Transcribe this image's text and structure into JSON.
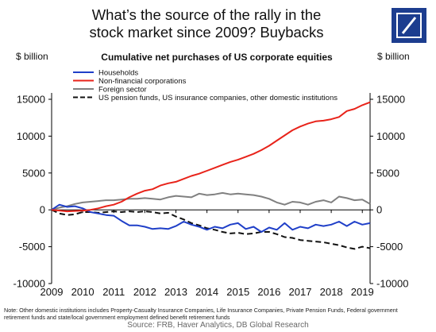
{
  "header": {
    "title_line1": "What’s the source of the rally in the",
    "title_line2": "stock market since 2009? Buybacks",
    "logo_name": "deutsche-bank-logo",
    "logo_color": "#1c3d8f"
  },
  "chart_data": {
    "type": "line",
    "title": "Cumulative net purchases of US corporate equities",
    "ylabel_left": "$ billion",
    "ylabel_right": "$ billion",
    "ylim": [
      -10000,
      15000
    ],
    "yticks": [
      15000,
      10000,
      5000,
      0,
      -5000,
      -10000
    ],
    "ytick_labels": [
      "15000",
      "10000",
      "5000",
      "0",
      "-5000",
      "-10000"
    ],
    "xlim": [
      2009,
      2019.25
    ],
    "xticks": [
      2009,
      2010,
      2011,
      2012,
      2013,
      2014,
      2015,
      2016,
      2017,
      2018,
      2019
    ],
    "xtick_labels": [
      "2009",
      "2010",
      "2011",
      "2012",
      "2013",
      "2014",
      "2015",
      "2016",
      "2017",
      "2018",
      "2019"
    ],
    "legend_position": "top-left",
    "grid": false,
    "series": [
      {
        "name": "Households",
        "color": "#1f3fc8",
        "dash": "solid",
        "points": [
          [
            2009.0,
            0
          ],
          [
            2009.25,
            700
          ],
          [
            2009.5,
            400
          ],
          [
            2009.75,
            500
          ],
          [
            2010.0,
            200
          ],
          [
            2010.25,
            -300
          ],
          [
            2010.5,
            -500
          ],
          [
            2010.75,
            -700
          ],
          [
            2011.0,
            -800
          ],
          [
            2011.25,
            -1500
          ],
          [
            2011.5,
            -2100
          ],
          [
            2011.75,
            -2100
          ],
          [
            2012.0,
            -2300
          ],
          [
            2012.25,
            -2600
          ],
          [
            2012.5,
            -2500
          ],
          [
            2012.75,
            -2600
          ],
          [
            2013.0,
            -2200
          ],
          [
            2013.25,
            -1600
          ],
          [
            2013.5,
            -2000
          ],
          [
            2013.75,
            -2300
          ],
          [
            2014.0,
            -2700
          ],
          [
            2014.25,
            -2300
          ],
          [
            2014.5,
            -2500
          ],
          [
            2014.75,
            -2000
          ],
          [
            2015.0,
            -1800
          ],
          [
            2015.25,
            -2600
          ],
          [
            2015.5,
            -2300
          ],
          [
            2015.75,
            -3000
          ],
          [
            2016.0,
            -2400
          ],
          [
            2016.25,
            -2700
          ],
          [
            2016.5,
            -1800
          ],
          [
            2016.75,
            -2700
          ],
          [
            2017.0,
            -2300
          ],
          [
            2017.25,
            -2500
          ],
          [
            2017.5,
            -2000
          ],
          [
            2017.75,
            -2200
          ],
          [
            2018.0,
            -2000
          ],
          [
            2018.25,
            -1600
          ],
          [
            2018.5,
            -2200
          ],
          [
            2018.75,
            -1600
          ],
          [
            2019.0,
            -2000
          ],
          [
            2019.25,
            -1800
          ]
        ]
      },
      {
        "name": "Non-financial corporations",
        "color": "#e8231a",
        "dash": "solid",
        "points": [
          [
            2009.0,
            0
          ],
          [
            2009.25,
            -100
          ],
          [
            2009.5,
            -200
          ],
          [
            2009.75,
            -150
          ],
          [
            2010.0,
            -100
          ],
          [
            2010.25,
            0
          ],
          [
            2010.5,
            200
          ],
          [
            2010.75,
            500
          ],
          [
            2011.0,
            700
          ],
          [
            2011.25,
            1100
          ],
          [
            2011.5,
            1700
          ],
          [
            2011.75,
            2200
          ],
          [
            2012.0,
            2600
          ],
          [
            2012.25,
            2800
          ],
          [
            2012.5,
            3300
          ],
          [
            2012.75,
            3600
          ],
          [
            2013.0,
            3800
          ],
          [
            2013.25,
            4200
          ],
          [
            2013.5,
            4600
          ],
          [
            2013.75,
            4900
          ],
          [
            2014.0,
            5300
          ],
          [
            2014.25,
            5700
          ],
          [
            2014.5,
            6100
          ],
          [
            2014.75,
            6500
          ],
          [
            2015.0,
            6800
          ],
          [
            2015.25,
            7200
          ],
          [
            2015.5,
            7600
          ],
          [
            2015.75,
            8100
          ],
          [
            2016.0,
            8700
          ],
          [
            2016.25,
            9400
          ],
          [
            2016.5,
            10100
          ],
          [
            2016.75,
            10800
          ],
          [
            2017.0,
            11300
          ],
          [
            2017.25,
            11700
          ],
          [
            2017.5,
            12000
          ],
          [
            2017.75,
            12100
          ],
          [
            2018.0,
            12300
          ],
          [
            2018.25,
            12600
          ],
          [
            2018.5,
            13400
          ],
          [
            2018.75,
            13700
          ],
          [
            2019.0,
            14200
          ],
          [
            2019.25,
            14600
          ]
        ]
      },
      {
        "name": "Foreign sector",
        "color": "#808080",
        "dash": "solid",
        "points": [
          [
            2009.0,
            0
          ],
          [
            2009.25,
            300
          ],
          [
            2009.5,
            500
          ],
          [
            2009.75,
            800
          ],
          [
            2010.0,
            1000
          ],
          [
            2010.25,
            1100
          ],
          [
            2010.5,
            1200
          ],
          [
            2010.75,
            1300
          ],
          [
            2011.0,
            1300
          ],
          [
            2011.25,
            1400
          ],
          [
            2011.5,
            1500
          ],
          [
            2011.75,
            1500
          ],
          [
            2012.0,
            1600
          ],
          [
            2012.25,
            1500
          ],
          [
            2012.5,
            1400
          ],
          [
            2012.75,
            1700
          ],
          [
            2013.0,
            1900
          ],
          [
            2013.25,
            1800
          ],
          [
            2013.5,
            1700
          ],
          [
            2013.75,
            2200
          ],
          [
            2014.0,
            2000
          ],
          [
            2014.25,
            2100
          ],
          [
            2014.5,
            2300
          ],
          [
            2014.75,
            2100
          ],
          [
            2015.0,
            2200
          ],
          [
            2015.25,
            2100
          ],
          [
            2015.5,
            2000
          ],
          [
            2015.75,
            1800
          ],
          [
            2016.0,
            1500
          ],
          [
            2016.25,
            1000
          ],
          [
            2016.5,
            700
          ],
          [
            2016.75,
            1100
          ],
          [
            2017.0,
            1000
          ],
          [
            2017.25,
            700
          ],
          [
            2017.5,
            1100
          ],
          [
            2017.75,
            1300
          ],
          [
            2018.0,
            1000
          ],
          [
            2018.25,
            1800
          ],
          [
            2018.5,
            1600
          ],
          [
            2018.75,
            1300
          ],
          [
            2019.0,
            1400
          ],
          [
            2019.25,
            800
          ]
        ]
      },
      {
        "name": "US pension funds, US insurance companies, other domestic institutions",
        "color": "#111111",
        "dash": "dashed",
        "points": [
          [
            2009.0,
            0
          ],
          [
            2009.25,
            -500
          ],
          [
            2009.5,
            -700
          ],
          [
            2009.75,
            -600
          ],
          [
            2010.0,
            -300
          ],
          [
            2010.25,
            -300
          ],
          [
            2010.5,
            -400
          ],
          [
            2010.75,
            -300
          ],
          [
            2011.0,
            -200
          ],
          [
            2011.25,
            -300
          ],
          [
            2011.5,
            -200
          ],
          [
            2011.75,
            -300
          ],
          [
            2012.0,
            -200
          ],
          [
            2012.25,
            -300
          ],
          [
            2012.5,
            -500
          ],
          [
            2012.75,
            -400
          ],
          [
            2013.0,
            -900
          ],
          [
            2013.25,
            -1300
          ],
          [
            2013.5,
            -1800
          ],
          [
            2013.75,
            -2100
          ],
          [
            2014.0,
            -2500
          ],
          [
            2014.25,
            -2700
          ],
          [
            2014.5,
            -3000
          ],
          [
            2014.75,
            -3200
          ],
          [
            2015.0,
            -3100
          ],
          [
            2015.25,
            -3300
          ],
          [
            2015.5,
            -3200
          ],
          [
            2015.75,
            -3000
          ],
          [
            2016.0,
            -3000
          ],
          [
            2016.25,
            -3300
          ],
          [
            2016.5,
            -3700
          ],
          [
            2016.75,
            -3800
          ],
          [
            2017.0,
            -4100
          ],
          [
            2017.25,
            -4200
          ],
          [
            2017.5,
            -4300
          ],
          [
            2017.75,
            -4400
          ],
          [
            2018.0,
            -4600
          ],
          [
            2018.25,
            -4800
          ],
          [
            2018.5,
            -5100
          ],
          [
            2018.75,
            -5300
          ],
          [
            2019.0,
            -5000
          ],
          [
            2019.25,
            -5200
          ]
        ]
      }
    ]
  },
  "footer": {
    "note_line1": "Note: Other domestic institutions includes Property-Casualty Insurance Companies, Life Insurance Companies, Private Pension Funds, Federal government",
    "note_line2": "retirement funds and state/local government employment defined benefit retirement funds",
    "source": "Source: FRB, Haver Analytics, DB Global Research"
  }
}
